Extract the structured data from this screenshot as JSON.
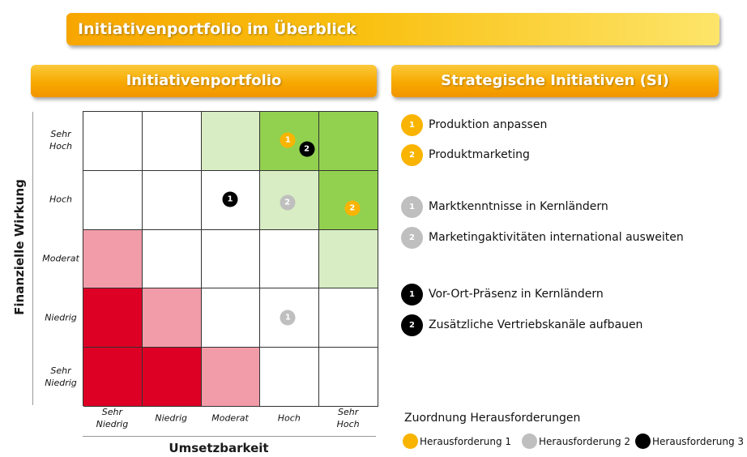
{
  "banner_title": "Initiativenportfolio im Überblick",
  "left_header": "Initiativenportfolio",
  "right_header": "Strategische Initiativen (SI)",
  "y_axis": {
    "title": "Finanzielle Wirkung",
    "levels": [
      [
        "Sehr",
        "Hoch"
      ],
      [
        "Hoch"
      ],
      [
        "Moderat"
      ],
      [
        "Niedrig"
      ],
      [
        "Sehr",
        "Niedrig"
      ]
    ]
  },
  "x_axis": {
    "title": "Umsetzbarkeit",
    "levels": [
      [
        "Sehr",
        "Niedrig"
      ],
      [
        "Niedrig"
      ],
      [
        "Moderat"
      ],
      [
        "Hoch"
      ],
      [
        "Sehr",
        "Hoch"
      ]
    ]
  },
  "colors": {
    "dark_red": "#dd0024",
    "light_red": "#f19ca8",
    "dark_green": "#92d14f",
    "light_green": "#d8edc3",
    "white": "#ffffff",
    "challenge_1": "#f8b400",
    "challenge_2": "#bfbfbf",
    "challenge_3": "#000000"
  },
  "matrix_colors": [
    [
      "white",
      "white",
      "light_green",
      "dark_green",
      "dark_green"
    ],
    [
      "white",
      "white",
      "white",
      "light_green",
      "dark_green"
    ],
    [
      "light_red",
      "white",
      "white",
      "white",
      "light_green"
    ],
    [
      "dark_red",
      "light_red",
      "white",
      "white",
      "white"
    ],
    [
      "dark_red",
      "dark_red",
      "light_red",
      "white",
      "white"
    ]
  ],
  "markers": [
    {
      "label": "1",
      "challenge": 1,
      "row": 0,
      "col": 3,
      "fx": 0.48,
      "fy": 0.5
    },
    {
      "label": "2",
      "challenge": 3,
      "row": 0,
      "col": 3,
      "fx": 0.8,
      "fy": 0.65
    },
    {
      "label": "1",
      "challenge": 3,
      "row": 1,
      "col": 2,
      "fx": 0.5,
      "fy": 0.5
    },
    {
      "label": "2",
      "challenge": 2,
      "row": 1,
      "col": 3,
      "fx": 0.47,
      "fy": 0.55
    },
    {
      "label": "2",
      "challenge": 1,
      "row": 1,
      "col": 4,
      "fx": 0.57,
      "fy": 0.65
    },
    {
      "label": "1",
      "challenge": 2,
      "row": 3,
      "col": 3,
      "fx": 0.48,
      "fy": 0.5
    }
  ],
  "initiatives": [
    {
      "num": "1",
      "challenge": 1,
      "label": "Produktion anpassen"
    },
    {
      "num": "2",
      "challenge": 1,
      "label": "Produktmarketing"
    },
    {
      "num": "1",
      "challenge": 2,
      "label": "Marktkenntnisse in Kernländern"
    },
    {
      "num": "2",
      "challenge": 2,
      "label": "Marketingaktivitäten international ausweiten"
    },
    {
      "num": "1",
      "challenge": 3,
      "label": "Vor-Ort-Präsenz in Kernländern"
    },
    {
      "num": "2",
      "challenge": 3,
      "label": "Zusätzliche Vertriebskanäle aufbauen"
    }
  ],
  "challenge_legend": {
    "title": "Zuordnung Herausforderungen",
    "items": [
      {
        "challenge": 1,
        "label": "Herausforderung 1"
      },
      {
        "challenge": 2,
        "label": "Herausforderung 2"
      },
      {
        "challenge": 3,
        "label": "Herausforderung 3"
      }
    ]
  }
}
